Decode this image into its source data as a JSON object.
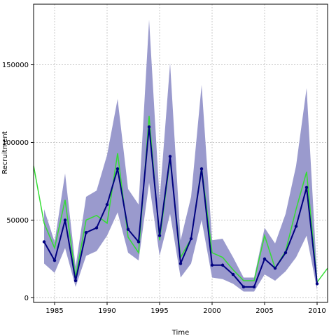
{
  "chart_data": {
    "type": "line",
    "title": "",
    "xlabel": "Time",
    "ylabel": "Recruitment",
    "xlim": [
      1983,
      2011
    ],
    "ylim": [
      -3000,
      189000
    ],
    "grid": true,
    "legend": "none",
    "x_ticks": [
      1985,
      1990,
      1995,
      2000,
      2005,
      2010
    ],
    "x_tick_labels": [
      "1985",
      "1990",
      "1995",
      "2000",
      "2005",
      "2010"
    ],
    "y_ticks": [
      0,
      50000,
      100000,
      150000
    ],
    "y_tick_labels": [
      "0",
      "50000",
      "100000",
      "150000"
    ],
    "colors": {
      "band": "#9a9acd",
      "estimate": "#000080",
      "observed": "#33dd33",
      "grid": "#c8c8c8",
      "axis": "#000000"
    },
    "series": [
      {
        "role": "band",
        "x": [
          1984,
          1985,
          1986,
          1987,
          1988,
          1989,
          1990,
          1991,
          1992,
          1993,
          1994,
          1995,
          1996,
          1997,
          1998,
          1999,
          2000,
          2001,
          2002,
          2003,
          2004,
          2005,
          2006,
          2007,
          2008,
          2009,
          2010
        ],
        "lower": [
          22000,
          16000,
          32000,
          7000,
          27000,
          30000,
          40000,
          55000,
          29000,
          24000,
          74000,
          27000,
          54000,
          13000,
          22000,
          50000,
          13000,
          12000,
          9000,
          4000,
          4000,
          15000,
          11000,
          17000,
          26000,
          40000,
          5000
        ],
        "upper": [
          57000,
          36000,
          80000,
          20000,
          65000,
          69000,
          92000,
          128000,
          70000,
          60000,
          179000,
          63000,
          151000,
          37000,
          65000,
          137000,
          37000,
          38000,
          26000,
          13000,
          13000,
          45000,
          35000,
          54000,
          85000,
          135000,
          14000
        ]
      },
      {
        "role": "estimate",
        "x": [
          1984,
          1985,
          1986,
          1987,
          1988,
          1989,
          1990,
          1991,
          1992,
          1993,
          1994,
          1995,
          1996,
          1997,
          1998,
          1999,
          2000,
          2001,
          2002,
          2003,
          2004,
          2005,
          2006,
          2007,
          2008,
          2009,
          2010
        ],
        "values": [
          36000,
          24000,
          50000,
          11000,
          42000,
          45000,
          60000,
          83000,
          44000,
          36000,
          110000,
          40000,
          91000,
          22000,
          38000,
          83000,
          21000,
          21000,
          15000,
          7000,
          7000,
          25000,
          19000,
          29000,
          46000,
          71000,
          9000
        ]
      },
      {
        "role": "observed",
        "x": [
          1983,
          1984,
          1985,
          1986,
          1987,
          1988,
          1989,
          1990,
          1991,
          1992,
          1993,
          1994,
          1995,
          1996,
          1997,
          1998,
          1999,
          2000,
          2001,
          2002,
          2003,
          2004,
          2005,
          2006,
          2007,
          2008,
          2009,
          2010,
          2011
        ],
        "values": [
          85000,
          48000,
          32000,
          63000,
          13000,
          50000,
          53000,
          48000,
          93000,
          39000,
          29000,
          117000,
          37000,
          89000,
          26000,
          38000,
          84000,
          29000,
          26000,
          18000,
          11000,
          11000,
          40000,
          19000,
          30000,
          57000,
          81000,
          10000,
          19000
        ]
      }
    ]
  }
}
